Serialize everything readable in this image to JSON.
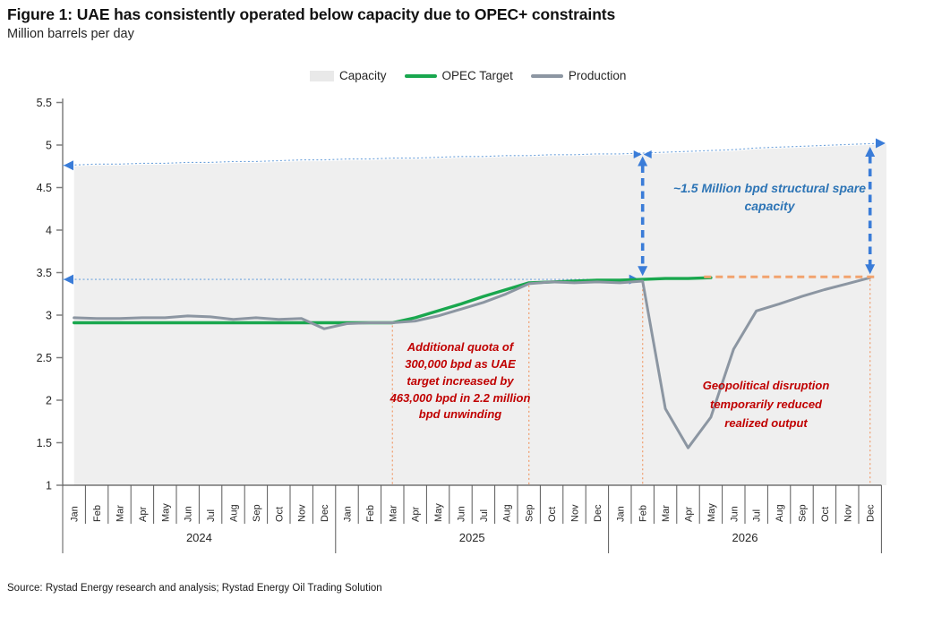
{
  "header": {
    "title": "Figure 1: UAE has consistently operated below capacity due to OPEC+ constraints",
    "subtitle": "Million barrels per day"
  },
  "legend": [
    {
      "label": "Capacity",
      "swatch": "area",
      "color": "#e9e9e9"
    },
    {
      "label": "OPEC Target",
      "swatch": "line",
      "color": "#19a74e"
    },
    {
      "label": "Production",
      "swatch": "line",
      "color": "#8c96a2"
    }
  ],
  "annotations": {
    "spare_capacity": "~1.5 Million bpd structural spare capacity",
    "quota": "Additional quota of 300,000 bpd as UAE target increased by 463,000 bpd in 2.2 million bpd unwinding",
    "geopolitical": "Geopolitical disruption temporarily reduced realized output"
  },
  "source": "Source: Rystad Energy research and analysis; Rystad Energy Oil Trading Solution",
  "chart_data": {
    "type": "line",
    "title": "UAE has consistently operated below capacity due to OPEC+ constraints",
    "ylabel": "Million barrels per day",
    "ylim": [
      1,
      5.5
    ],
    "yticks": [
      1,
      1.5,
      2,
      2.5,
      3,
      3.5,
      4,
      4.5,
      5,
      5.5
    ],
    "grid": false,
    "legend_position": "top",
    "years": [
      "2024",
      "2025",
      "2026"
    ],
    "months": [
      "Jan",
      "Feb",
      "Mar",
      "Apr",
      "May",
      "Jun",
      "Jul",
      "Aug",
      "Sep",
      "Oct",
      "Nov",
      "Dec"
    ],
    "series": [
      {
        "name": "Capacity",
        "type": "area",
        "color": "#efefef",
        "values": [
          4.75,
          4.76,
          4.76,
          4.77,
          4.77,
          4.78,
          4.78,
          4.79,
          4.79,
          4.8,
          4.81,
          4.81,
          4.82,
          4.82,
          4.83,
          4.83,
          4.84,
          4.85,
          4.85,
          4.86,
          4.86,
          4.87,
          4.87,
          4.88,
          4.88,
          4.89,
          4.9,
          4.91,
          4.92,
          4.93,
          4.95,
          4.96,
          4.97,
          4.98,
          4.99,
          5.0
        ]
      },
      {
        "name": "OPEC Target",
        "type": "line",
        "color": "#19a74e",
        "values": [
          2.91,
          2.91,
          2.91,
          2.91,
          2.91,
          2.91,
          2.91,
          2.91,
          2.91,
          2.91,
          2.91,
          2.91,
          2.91,
          2.91,
          2.91,
          2.97,
          3.05,
          3.13,
          3.22,
          3.3,
          3.38,
          3.39,
          3.4,
          3.41,
          3.41,
          3.42,
          3.43,
          3.43,
          3.44,
          null,
          null,
          null,
          null,
          null,
          null,
          null
        ]
      },
      {
        "name": "Production",
        "type": "line",
        "color": "#8c96a2",
        "values": [
          2.97,
          2.96,
          2.96,
          2.97,
          2.97,
          2.99,
          2.98,
          2.95,
          2.97,
          2.95,
          2.96,
          2.84,
          2.9,
          2.91,
          2.91,
          2.93,
          2.99,
          3.07,
          3.15,
          3.25,
          3.37,
          3.39,
          3.38,
          3.39,
          3.38,
          3.4,
          1.9,
          1.44,
          1.8,
          2.6,
          3.05,
          3.13,
          3.22,
          3.3,
          3.37,
          3.44
        ]
      }
    ],
    "colors": {
      "capacity_fill": "#efefef",
      "blue_dot": "#6fa3dc",
      "blue_arrow": "#3a7cd8",
      "orange_dot": "#f0a173",
      "orange_dash": "#f2a36e",
      "axis": "#7f7f7f",
      "tick_text": "#262626",
      "annotation_red": "#c00000",
      "annotation_blue": "#2e75b6"
    },
    "markers": {
      "capacity_guide": {
        "start_value": 4.75,
        "end_value": 5.0
      },
      "target_guide": {
        "value": 3.42,
        "end_month": 25
      },
      "spare_arrows": [
        {
          "month": 25,
          "from": 3.44,
          "to": 4.89,
          "bowtie": true
        },
        {
          "month": 35,
          "from": 3.46,
          "to": 5.0,
          "bowtie": false
        }
      ],
      "orange_vlines": [
        {
          "month": 14,
          "from_value": 2.91
        },
        {
          "month": 20,
          "from_value": 3.38
        },
        {
          "month": 25,
          "from_value": 3.44
        },
        {
          "month": 35,
          "from_value": 3.45
        }
      ],
      "orange_dash": {
        "value": 3.45,
        "from_month": 27.7,
        "to_month": 35.2
      }
    }
  }
}
